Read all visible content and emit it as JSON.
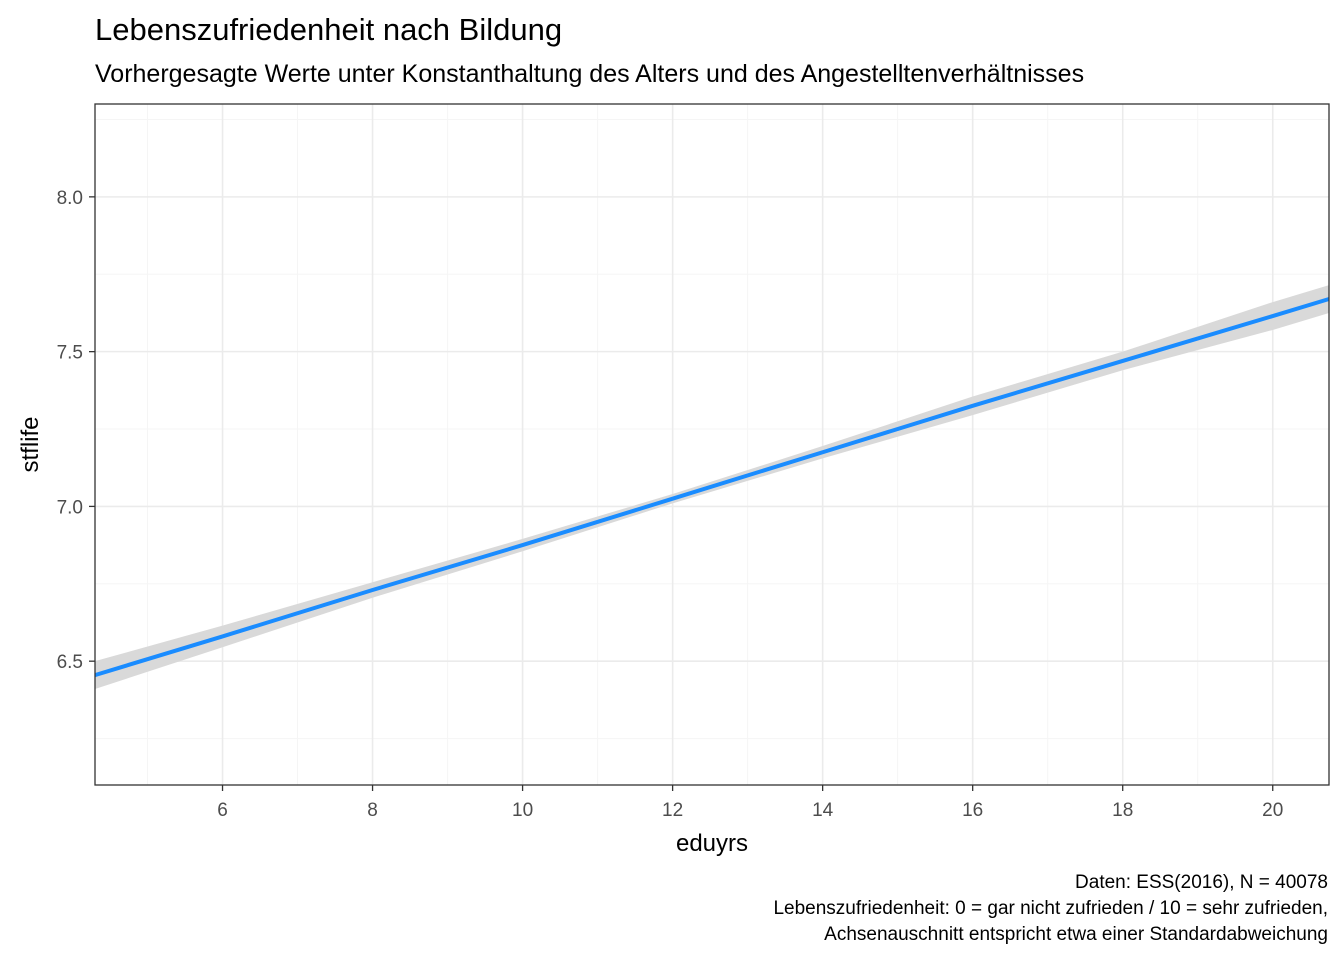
{
  "header": {
    "title": "Lebenszufriedenheit nach Bildung",
    "subtitle": "Vorhergesagte Werte unter Konstanthaltung des Alters und des Angestelltenverhältnisses"
  },
  "caption": {
    "line1": "Daten: ESS(2016), N = 40078",
    "line2": "Lebenszufriedenheit: 0 = gar nicht zufrieden / 10 = sehr zufrieden,",
    "line3": "Achsenauschnitt entspricht etwa einer Standardabweichung"
  },
  "colors": {
    "line": "#1a8cff",
    "ribbon": "#d9d9d9",
    "grid_major": "#ebebeb",
    "grid_minor": "#f5f5f5",
    "axis_text": "#4d4d4d",
    "panel_border": "#333333"
  },
  "chart_data": {
    "type": "line",
    "xlabel": "eduyrs",
    "ylabel": "stflife",
    "xlim": [
      4.3,
      20.75
    ],
    "ylim": [
      6.1,
      8.3
    ],
    "xticks": [
      6,
      8,
      10,
      12,
      14,
      16,
      18,
      20
    ],
    "xtick_labels": [
      "6",
      "8",
      "10",
      "12",
      "14",
      "16",
      "18",
      "20"
    ],
    "yticks": [
      6.5,
      7.0,
      7.5,
      8.0
    ],
    "ytick_labels": [
      "6.5",
      "7.0",
      "7.5",
      "8.0"
    ],
    "grid": true,
    "legend": "none",
    "series": [
      {
        "x": [
          4.3,
          6,
          8,
          10,
          12,
          14,
          16,
          18,
          20,
          20.75
        ],
        "values": [
          6.455,
          6.58,
          6.73,
          6.875,
          7.025,
          7.175,
          7.325,
          7.47,
          7.615,
          7.67
        ],
        "lower": [
          6.41,
          6.545,
          6.705,
          6.855,
          7.01,
          7.155,
          7.295,
          7.44,
          7.57,
          7.625
        ],
        "upper": [
          6.5,
          6.615,
          6.755,
          6.895,
          7.04,
          7.195,
          7.355,
          7.5,
          7.66,
          7.715
        ]
      }
    ]
  }
}
